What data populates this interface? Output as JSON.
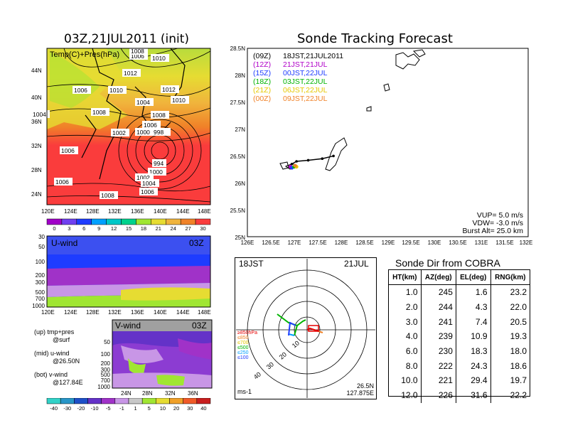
{
  "left_panel": {
    "title": "03Z,21JUL2011 (init)",
    "legend_text": "Temp(C)+Pres(hPa)",
    "lat_labels": [
      "44N",
      "40N",
      "36N",
      "32N",
      "28N",
      "24N"
    ],
    "lon_labels": [
      "120E",
      "124E",
      "128E",
      "132E",
      "136E",
      "140E",
      "144E",
      "148E"
    ],
    "isobar_labels": [
      "1006",
      "1008",
      "1010",
      "1012",
      "1012",
      "1010",
      "1006",
      "1008",
      "1004",
      "1004",
      "1008",
      "1010",
      "1002",
      "1000",
      "998",
      "1006",
      "994",
      "1006",
      "1000",
      "1002",
      "1004",
      "1006",
      "1006",
      "1008"
    ],
    "colorbar_ticks": [
      "0",
      "3",
      "6",
      "9",
      "12",
      "15",
      "18",
      "21",
      "24",
      "27",
      "30"
    ],
    "colorbar_colors": [
      "#a000c8",
      "#7040f0",
      "#1e3cff",
      "#00a0ff",
      "#00c8c8",
      "#00d28c",
      "#a0e632",
      "#e6dc32",
      "#f0b43c",
      "#f08228",
      "#fa3c3c"
    ]
  },
  "u_panel": {
    "label": "U-wind",
    "time": "03Z",
    "y_labels": [
      "30",
      "50",
      "100",
      "200",
      "300",
      "500",
      "700",
      "1000"
    ],
    "x_labels": [
      "120E",
      "124E",
      "128E",
      "132E",
      "136E",
      "140E",
      "144E",
      "148E"
    ]
  },
  "v_panel": {
    "label": "V-wind",
    "time": "03Z",
    "y_labels": [
      "50",
      "100",
      "200",
      "300",
      "500",
      "700",
      "1000"
    ],
    "x_labels": [
      "24N",
      "28N",
      "32N",
      "36N"
    ],
    "colorbar_ticks": [
      "-40",
      "-30",
      "-20",
      "-10",
      "-5",
      "-1",
      "1",
      "5",
      "10",
      "20",
      "30",
      "40"
    ],
    "colorbar_colors": [
      "#32d2c8",
      "#2896c8",
      "#1e50c8",
      "#6432c8",
      "#a032c8",
      "#c896e6",
      "#c8c8c8",
      "#a0e632",
      "#e6dc32",
      "#f0a028",
      "#f05a28",
      "#c81e1e"
    ]
  },
  "notes": {
    "up": "(up) tmp+pres",
    "up2": "@surf",
    "mid": "(mid) u-wind",
    "mid2": "@26.50N",
    "bot": "(bot) v-wind",
    "bot2": "@127.84E"
  },
  "track_panel": {
    "title": "Sonde Tracking Forecast",
    "lat_labels": [
      "28.5N",
      "28N",
      "27.5N",
      "27N",
      "26.5N",
      "26N",
      "25.5N",
      "25N"
    ],
    "lon_labels": [
      "126E",
      "126.5E",
      "127E",
      "127.5E",
      "128E",
      "128.5E",
      "129E",
      "129.5E",
      "130E",
      "130.5E",
      "131E",
      "131.5E",
      "132E"
    ],
    "legend": [
      {
        "code": "(09Z)",
        "text": "18JST,21JUL2011",
        "color": "#000000"
      },
      {
        "code": "(12Z)",
        "text": "21JST,21JUL",
        "color": "#b000c8"
      },
      {
        "code": "(15Z)",
        "text": "00JST,22JUL",
        "color": "#1e3cff"
      },
      {
        "code": "(18Z)",
        "text": "03JST,22JUL",
        "color": "#00b400"
      },
      {
        "code": "(21Z)",
        "text": "06JST,22JUL",
        "color": "#e6c800"
      },
      {
        "code": "(00Z)",
        "text": "09JST,22JUL",
        "color": "#f08228"
      }
    ],
    "params": [
      "VUP= 5.0 m/s",
      "VDW= -3.0 m/s",
      "Burst Alt= 25.0 km"
    ]
  },
  "polar_panel": {
    "left_label": "18JST",
    "right_label": "21JUL",
    "bottom_left": "ms-1",
    "bottom_right1": "26.5N",
    "bottom_right2": "127.875E",
    "ring_labels": [
      "10",
      "20",
      "30",
      "40"
    ],
    "level_labels": [
      {
        "text": "≥850hPa",
        "color": "#e60000"
      },
      {
        "text": "≤850",
        "color": "#f08228"
      },
      {
        "text": "≤700",
        "color": "#e6c800"
      },
      {
        "text": "≤500",
        "color": "#00b400"
      },
      {
        "text": "≤250",
        "color": "#00a0ff"
      },
      {
        "text": "≤100",
        "color": "#1e3cff"
      }
    ]
  },
  "sonde_table": {
    "title": "Sonde Dir from COBRA",
    "headers": [
      "HT(km)",
      "AZ(deg)",
      "EL(deg)",
      "RNG(km)"
    ],
    "rows": [
      [
        "1.0",
        "245",
        "1.6",
        "23.2"
      ],
      [
        "2.0",
        "244",
        "4.3",
        "22.0"
      ],
      [
        "3.0",
        "241",
        "7.4",
        "20.5"
      ],
      [
        "4.0",
        "239",
        "10.9",
        "19.3"
      ],
      [
        "6.0",
        "230",
        "18.3",
        "18.0"
      ],
      [
        "8.0",
        "222",
        "24.3",
        "18.6"
      ],
      [
        "10.0",
        "221",
        "29.4",
        "19.7"
      ],
      [
        "12.0",
        "226",
        "31.6",
        "22.2"
      ]
    ]
  },
  "chart_data": [
    {
      "type": "heatmap",
      "title": "03Z,21JUL2011 (init)",
      "subtitle": "Temp(C)+Pres(hPa)",
      "xlabel": "",
      "ylabel": "",
      "x_ticks": [
        "120E",
        "124E",
        "128E",
        "132E",
        "136E",
        "140E",
        "144E",
        "148E"
      ],
      "y_ticks": [
        "24N",
        "28N",
        "32N",
        "36N",
        "40N",
        "44N"
      ],
      "colorbar": [
        0,
        3,
        6,
        9,
        12,
        15,
        18,
        21,
        24,
        27,
        30
      ],
      "contour_labels": [
        1006,
        1008,
        1010,
        1012,
        1012,
        1010,
        1006,
        1008,
        1004,
        1004,
        1008,
        1010,
        1002,
        1000,
        998,
        1006,
        994,
        1006,
        1000,
        1002,
        1004,
        1006,
        1006,
        1008
      ]
    },
    {
      "type": "heatmap",
      "title": "U-wind",
      "subtitle": "03Z",
      "x_ticks": [
        "120E",
        "124E",
        "128E",
        "132E",
        "136E",
        "140E",
        "144E",
        "148E"
      ],
      "y_ticks": [
        30,
        50,
        100,
        200,
        300,
        500,
        700,
        1000
      ]
    },
    {
      "type": "heatmap",
      "title": "V-wind",
      "subtitle": "03Z",
      "x_ticks": [
        "24N",
        "28N",
        "32N",
        "36N"
      ],
      "y_ticks": [
        50,
        100,
        200,
        300,
        500,
        700,
        1000
      ],
      "colorbar": [
        -40,
        -30,
        -20,
        -10,
        -5,
        -1,
        1,
        5,
        10,
        20,
        30,
        40
      ]
    },
    {
      "type": "line",
      "title": "Sonde Tracking Forecast",
      "xlim": [
        126,
        132
      ],
      "ylim": [
        25,
        28.5
      ],
      "series": [
        {
          "name": "18JST,21JUL2011",
          "x": [
            127.84,
            127.6,
            127.3,
            127.05,
            126.95
          ],
          "y": [
            26.5,
            26.45,
            26.42,
            26.4,
            26.35
          ]
        },
        {
          "name": "21JST,21JUL",
          "x": [
            126.92
          ],
          "y": [
            26.3
          ]
        },
        {
          "name": "00JST,22JUL",
          "x": [
            126.95
          ],
          "y": [
            26.28
          ]
        },
        {
          "name": "03JST,22JUL",
          "x": [
            127.0
          ],
          "y": [
            26.3
          ]
        },
        {
          "name": "06JST,22JUL",
          "x": [
            127.05
          ],
          "y": [
            26.3
          ]
        },
        {
          "name": "09JST,22JUL",
          "x": [
            127.02
          ],
          "y": [
            26.32
          ]
        }
      ]
    },
    {
      "type": "table",
      "title": "Sonde Dir from COBRA",
      "columns": [
        "HT(km)",
        "AZ(deg)",
        "EL(deg)",
        "RNG(km)"
      ],
      "rows": [
        [
          1.0,
          245,
          1.6,
          23.2
        ],
        [
          2.0,
          244,
          4.3,
          22.0
        ],
        [
          3.0,
          241,
          7.4,
          20.5
        ],
        [
          4.0,
          239,
          10.9,
          19.3
        ],
        [
          6.0,
          230,
          18.3,
          18.0
        ],
        [
          8.0,
          222,
          24.3,
          18.6
        ],
        [
          10.0,
          221,
          29.4,
          19.7
        ],
        [
          12.0,
          226,
          31.6,
          22.2
        ]
      ]
    }
  ]
}
